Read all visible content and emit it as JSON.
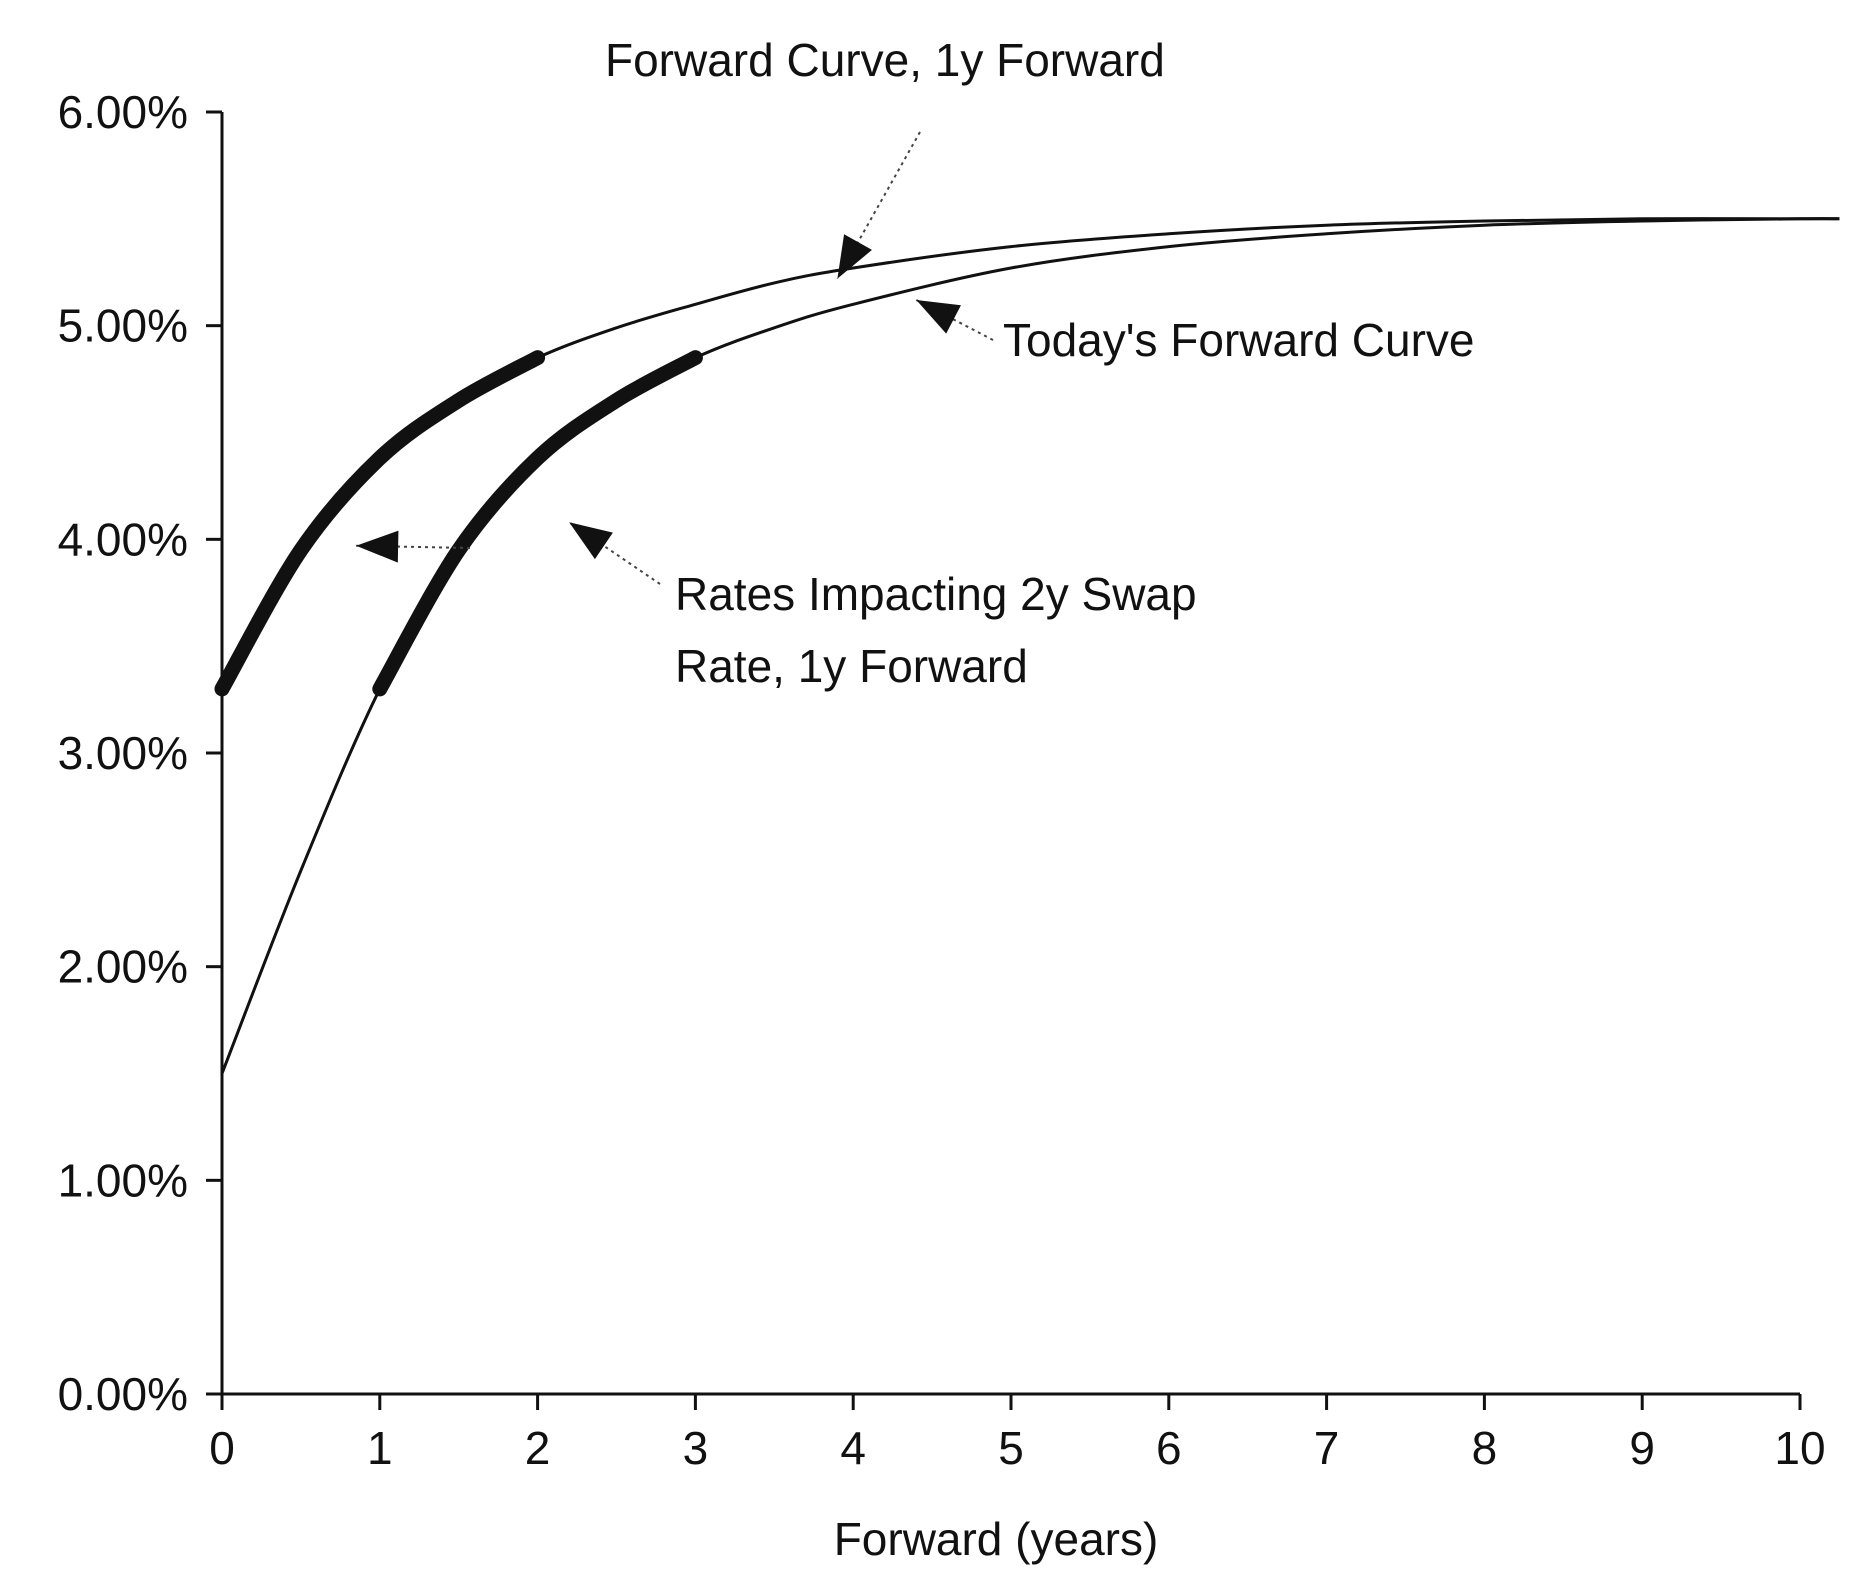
{
  "chart_data": {
    "type": "line",
    "title": "",
    "xlabel": "Forward (years)",
    "ylabel": "",
    "xlim": [
      0,
      10.25
    ],
    "ylim": [
      0,
      6
    ],
    "x_ticks": [
      "0",
      "1",
      "2",
      "3",
      "4",
      "5",
      "6",
      "7",
      "8",
      "9",
      "10"
    ],
    "y_ticks": [
      "0.00%",
      "1.00%",
      "2.00%",
      "3.00%",
      "4.00%",
      "5.00%",
      "6.00%"
    ],
    "grid": false,
    "series": [
      {
        "name": "Today's Forward Curve",
        "x": [
          0,
          0.5,
          1,
          1.5,
          2,
          2.5,
          3,
          3.5,
          4,
          5,
          6,
          7,
          8,
          9,
          10,
          10.25
        ],
        "y": [
          1.5,
          2.45,
          3.3,
          3.95,
          4.38,
          4.65,
          4.85,
          4.99,
          5.1,
          5.27,
          5.37,
          5.43,
          5.47,
          5.49,
          5.5,
          5.5
        ]
      },
      {
        "name": "Forward Curve, 1y Forward",
        "x": [
          0,
          0.5,
          1,
          1.5,
          2,
          2.5,
          3,
          3.5,
          4,
          5,
          6,
          7,
          8,
          9,
          10,
          10.25
        ],
        "y": [
          3.3,
          3.95,
          4.38,
          4.65,
          4.85,
          4.99,
          5.1,
          5.2,
          5.27,
          5.37,
          5.43,
          5.47,
          5.49,
          5.5,
          5.5,
          5.5
        ]
      }
    ],
    "highlighted_segments": [
      {
        "series": "Forward Curve, 1y Forward",
        "x_range": [
          0,
          2
        ]
      },
      {
        "series": "Today's Forward Curve",
        "x_range": [
          1,
          3
        ]
      }
    ],
    "annotations": [
      {
        "text": "Forward Curve, 1y Forward",
        "points_to": {
          "x": 3.9,
          "y": 5.22
        }
      },
      {
        "text": "Today's Forward Curve",
        "points_to": {
          "x": 4.4,
          "y": 5.12
        }
      },
      {
        "lines": [
          "Rates Impacting 2y Swap",
          "Rate, 1y Forward"
        ],
        "points_to": {
          "x": 2.2,
          "y": 4.08
        }
      },
      {
        "text": "",
        "points_to": {
          "x": 0.85,
          "y": 3.97
        }
      }
    ]
  }
}
